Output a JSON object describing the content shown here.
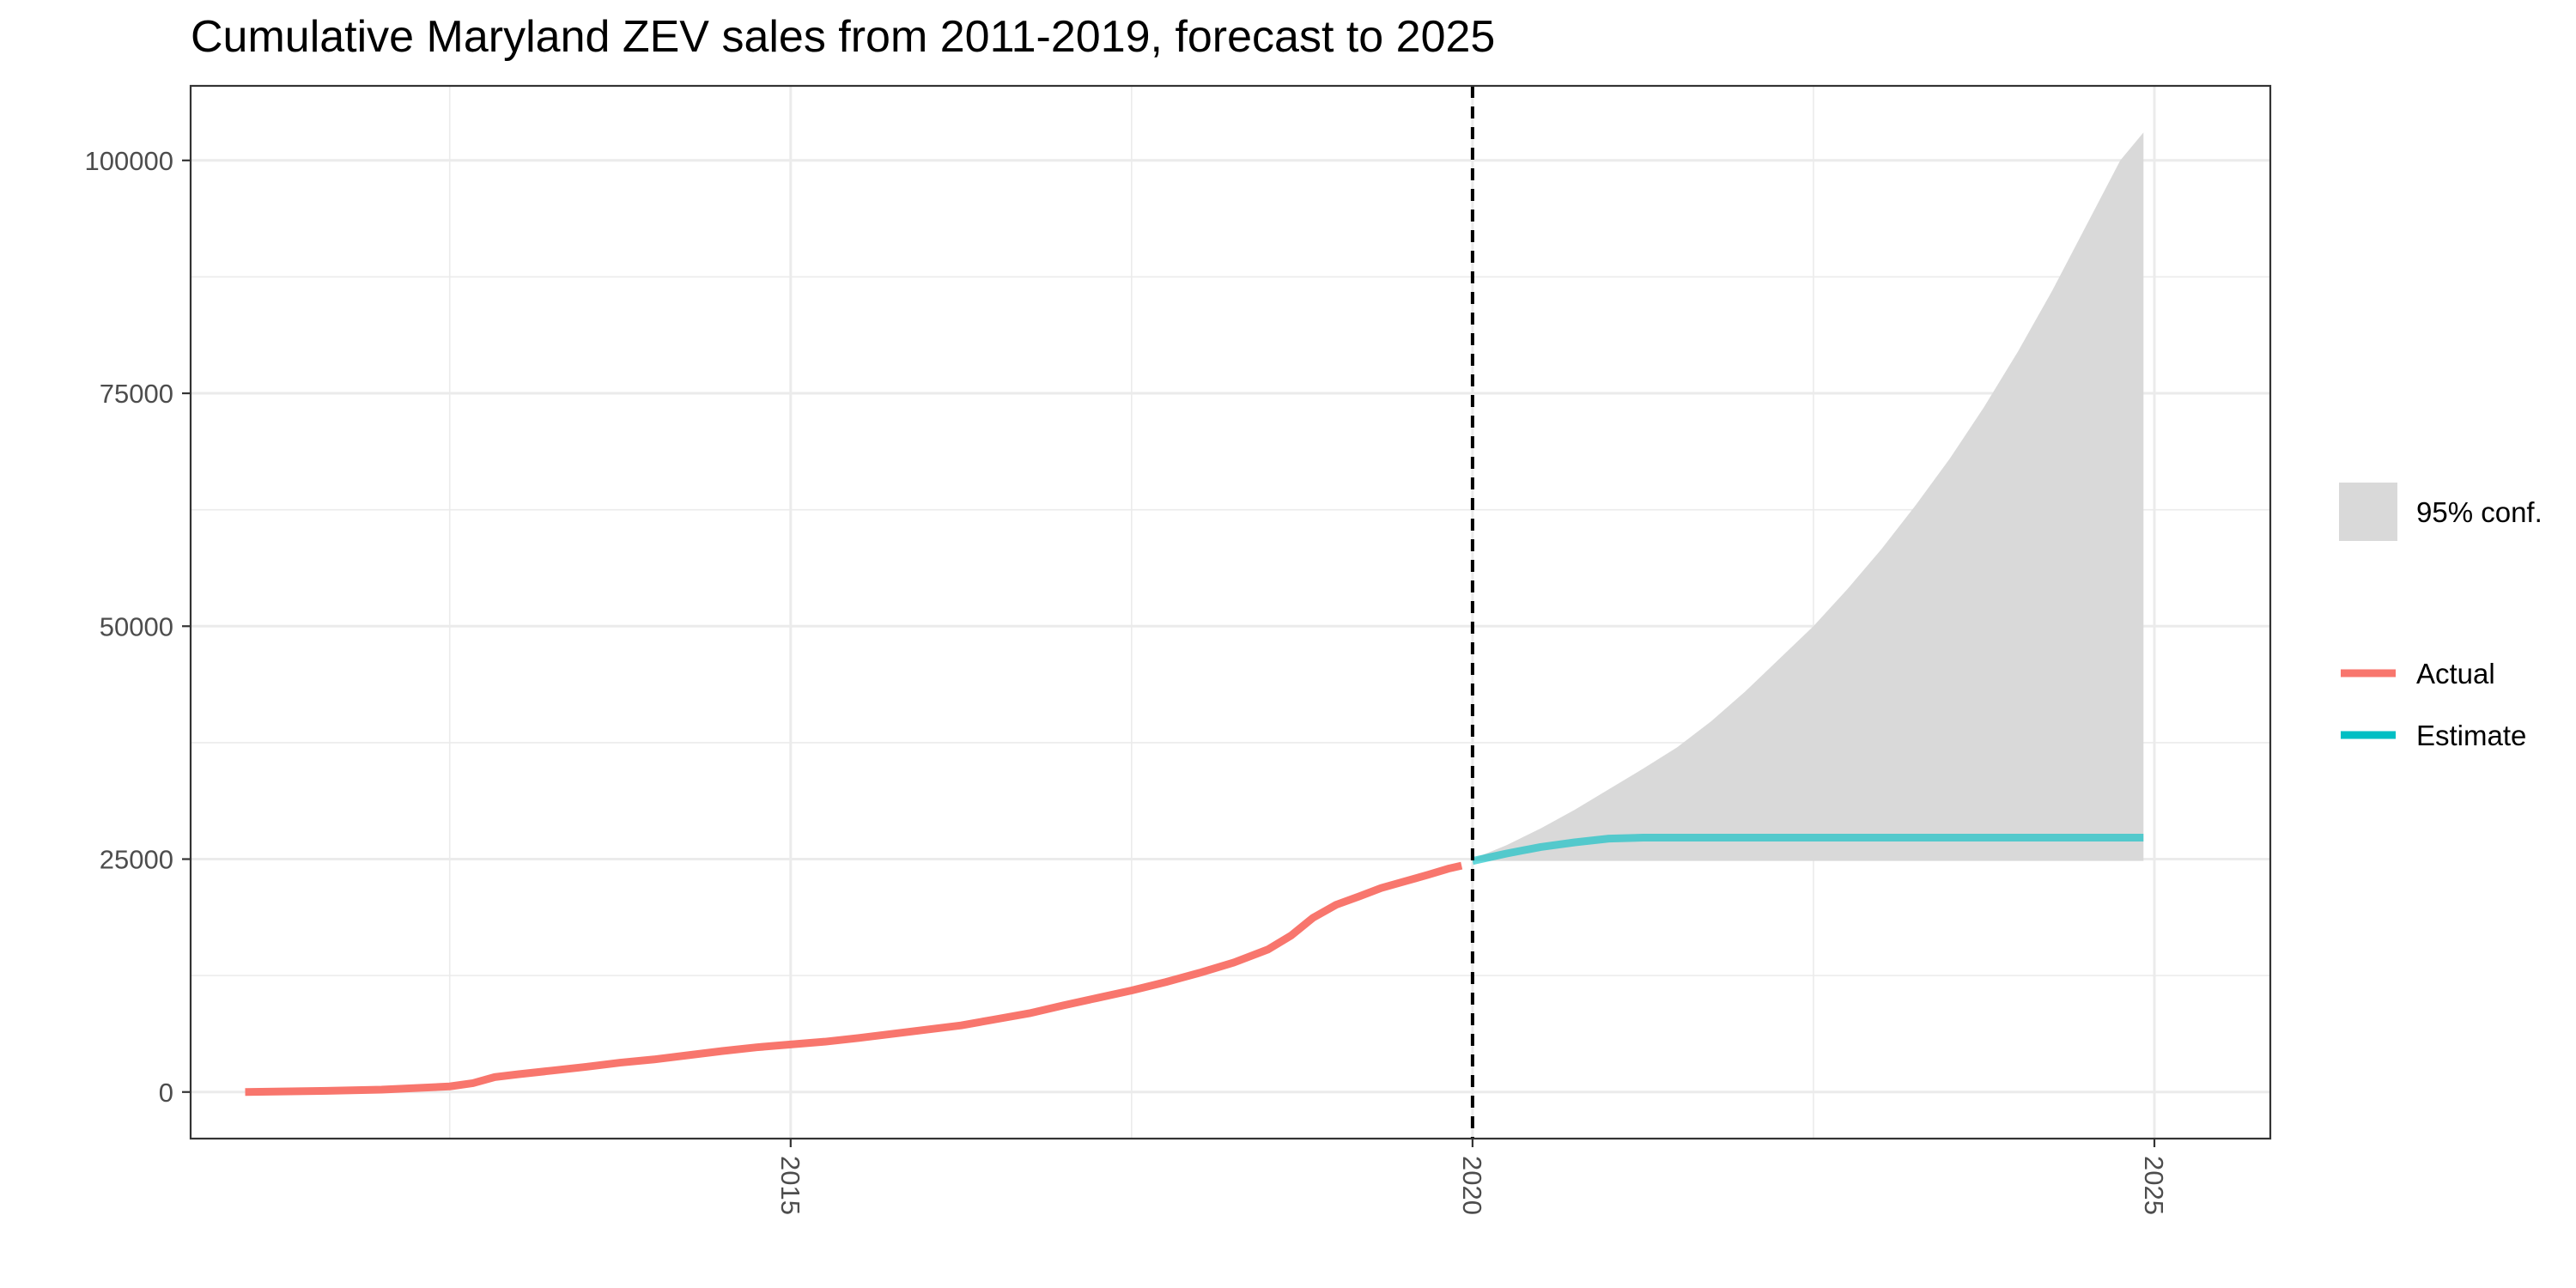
{
  "chart_data": {
    "type": "line",
    "title": "Cumulative Maryland ZEV sales from 2011-2019, forecast to 2025",
    "xlabel": "",
    "ylabel": "",
    "xlim": [
      2010.6,
      2025.85
    ],
    "ylim": [
      -5000,
      108000
    ],
    "x_ticks": [
      2015,
      2020,
      2025
    ],
    "x_tick_labels": [
      "2015",
      "2020",
      "2025"
    ],
    "y_ticks": [
      0,
      25000,
      50000,
      75000,
      100000
    ],
    "y_tick_labels": [
      "0",
      "25000",
      "50000",
      "75000",
      "100000"
    ],
    "grid": true,
    "legend_position": "right",
    "colors": {
      "actual": "#F8766D",
      "estimate": "#00BFC4",
      "ribbon": "#D9D9D9",
      "vline": "#000000"
    },
    "forecast_start_x": 2020,
    "series": [
      {
        "name": "Actual",
        "x": [
          2011.0,
          2011.5,
          2012.0,
          2012.5,
          2012.67,
          2012.83,
          2013.0,
          2013.25,
          2013.5,
          2013.75,
          2014.0,
          2014.25,
          2014.5,
          2014.75,
          2015.0,
          2015.25,
          2015.5,
          2015.75,
          2016.0,
          2016.25,
          2016.5,
          2016.75,
          2017.0,
          2017.25,
          2017.5,
          2017.75,
          2018.0,
          2018.25,
          2018.5,
          2018.67,
          2018.83,
          2019.0,
          2019.17,
          2019.33,
          2019.5,
          2019.67,
          2019.83,
          2019.92
        ],
        "values": [
          0,
          100,
          250,
          600,
          950,
          1600,
          1900,
          2300,
          2700,
          3150,
          3500,
          3950,
          4400,
          4800,
          5100,
          5400,
          5800,
          6250,
          6700,
          7150,
          7800,
          8450,
          9300,
          10100,
          10900,
          11800,
          12800,
          13900,
          15300,
          16800,
          18700,
          20100,
          21000,
          21900,
          22600,
          23300,
          24000,
          24300
        ]
      },
      {
        "name": "Estimate",
        "x": [
          2020.0,
          2020.25,
          2020.5,
          2020.75,
          2021.0,
          2021.25,
          2021.5,
          2022.0,
          2022.5,
          2023.0,
          2023.5,
          2024.0,
          2024.5,
          2024.92
        ],
        "values": [
          24800,
          25600,
          26300,
          26800,
          27200,
          27300,
          27300,
          27300,
          27300,
          27300,
          27300,
          27300,
          27300,
          27300
        ]
      }
    ],
    "ribbon": {
      "name": "95% conf.",
      "x": [
        2020.0,
        2020.25,
        2020.5,
        2020.75,
        2021.0,
        2021.25,
        2021.5,
        2021.75,
        2022.0,
        2022.25,
        2022.5,
        2022.75,
        2023.0,
        2023.25,
        2023.5,
        2023.75,
        2024.0,
        2024.25,
        2024.5,
        2024.75,
        2024.92
      ],
      "lower": [
        24800,
        24800,
        24800,
        24800,
        24800,
        24800,
        24800,
        24800,
        24800,
        24800,
        24800,
        24800,
        24800,
        24800,
        24800,
        24800,
        24800,
        24800,
        24800,
        24800,
        24800
      ],
      "upper": [
        25000,
        26500,
        28300,
        30300,
        32500,
        34700,
        37000,
        39800,
        43000,
        46500,
        50000,
        54000,
        58300,
        63000,
        68000,
        73500,
        79500,
        86000,
        93000,
        100000,
        103000
      ]
    },
    "legend": [
      {
        "label": "95% conf.",
        "kind": "fill",
        "color": "#D9D9D9"
      },
      {
        "label": "Actual",
        "kind": "line",
        "color": "#F8766D"
      },
      {
        "label": "Estimate",
        "kind": "line",
        "color": "#00BFC4"
      }
    ]
  }
}
